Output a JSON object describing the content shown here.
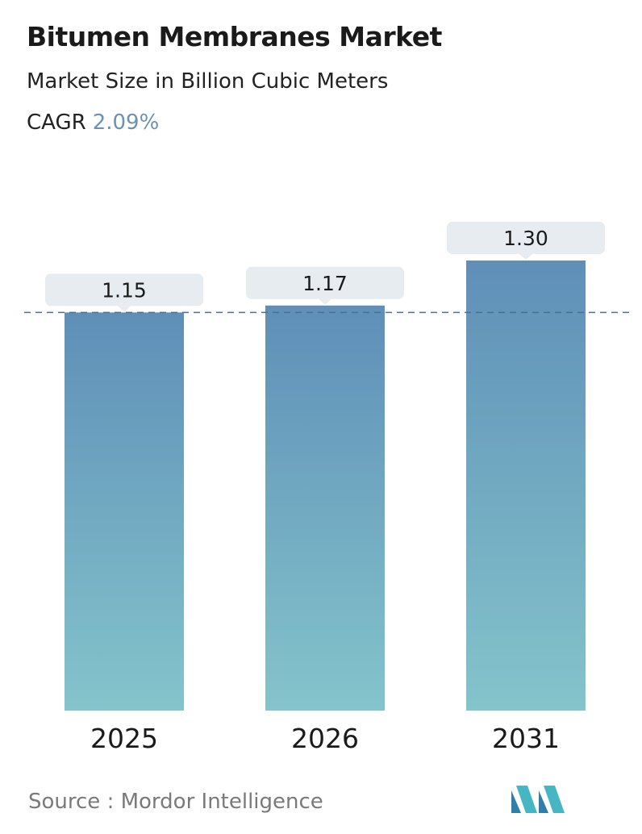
{
  "title": "Bitumen Membranes Market",
  "subtitle": "Market Size in Billion Cubic Meters",
  "cagr": {
    "label": "CAGR",
    "value": "2.09%",
    "value_color": "#6a93b2"
  },
  "source": "Source :  Mordor Intelligence",
  "logo_icon": "mordor-intelligence-logo-icon",
  "colors": {
    "bar_top": "#5f8fb8",
    "bar_bottom": "#84c4cb",
    "label_box": "#e6ecef",
    "reference_line": "#4a7090"
  },
  "chart_data": {
    "type": "bar",
    "title": "Bitumen Membranes Market",
    "subtitle": "Market Size in Billion Cubic Meters",
    "categories": [
      "2025",
      "2026",
      "2031"
    ],
    "values": [
      1.15,
      1.17,
      1.3
    ],
    "value_labels": [
      "1.15",
      "1.17",
      "1.30"
    ],
    "reference_line_value": 1.15,
    "grid": false,
    "legend": "none",
    "xlabel": "",
    "ylabel": ""
  }
}
